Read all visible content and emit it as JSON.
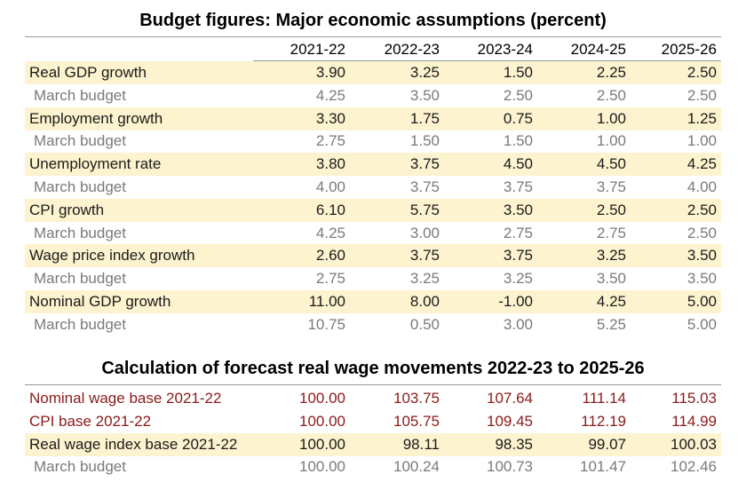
{
  "table1": {
    "title": "Budget figures: Major economic assumptions (percent)",
    "columns": [
      "2021-22",
      "2022-23",
      "2023-24",
      "2024-25",
      "2025-26"
    ],
    "rows": [
      {
        "label": "Real GDP growth",
        "values": [
          "3.90",
          "3.25",
          "1.50",
          "2.25",
          "2.50"
        ]
      },
      {
        "label": "March budget",
        "values": [
          "4.25",
          "3.50",
          "2.50",
          "2.50",
          "2.50"
        ]
      },
      {
        "label": "Employment growth",
        "values": [
          "3.30",
          "1.75",
          "0.75",
          "1.00",
          "1.25"
        ]
      },
      {
        "label": "March budget",
        "values": [
          "2.75",
          "1.50",
          "1.50",
          "1.00",
          "1.00"
        ]
      },
      {
        "label": "Unemployment rate",
        "values": [
          "3.80",
          "3.75",
          "4.50",
          "4.50",
          "4.25"
        ]
      },
      {
        "label": "March budget",
        "values": [
          "4.00",
          "3.75",
          "3.75",
          "3.75",
          "4.00"
        ]
      },
      {
        "label": "CPI growth",
        "values": [
          "6.10",
          "5.75",
          "3.50",
          "2.50",
          "2.50"
        ]
      },
      {
        "label": "March budget",
        "values": [
          "4.25",
          "3.00",
          "2.75",
          "2.75",
          "2.50"
        ]
      },
      {
        "label": "Wage price index growth",
        "values": [
          "2.60",
          "3.75",
          "3.75",
          "3.25",
          "3.50"
        ]
      },
      {
        "label": "March budget",
        "values": [
          "2.75",
          "3.25",
          "3.25",
          "3.50",
          "3.50"
        ]
      },
      {
        "label": "Nominal GDP growth",
        "values": [
          "11.00",
          "8.00",
          "-1.00",
          "4.25",
          "5.00"
        ]
      },
      {
        "label": "March budget",
        "values": [
          "10.75",
          "0.50",
          "3.00",
          "5.25",
          "5.00"
        ]
      }
    ]
  },
  "table2": {
    "title": "Calculation of forecast real wage movements 2022-23 to 2025-26",
    "rows": [
      {
        "label": "Nominal wage base 2021-22",
        "values": [
          "100.00",
          "103.75",
          "107.64",
          "111.14",
          "115.03"
        ]
      },
      {
        "label": "CPI base 2021-22",
        "values": [
          "100.00",
          "105.75",
          "109.45",
          "112.19",
          "114.99"
        ]
      },
      {
        "label": "Real wage index base 2021-22",
        "values": [
          "100.00",
          "98.11",
          "98.35",
          "99.07",
          "100.03"
        ]
      },
      {
        "label": "March budget",
        "values": [
          "100.00",
          "100.24",
          "100.73",
          "101.47",
          "102.46"
        ]
      }
    ]
  },
  "colors": {
    "highlight": "#fdf3cf",
    "red_text": "#8b1a1a",
    "muted_text": "#7a7a7a"
  }
}
